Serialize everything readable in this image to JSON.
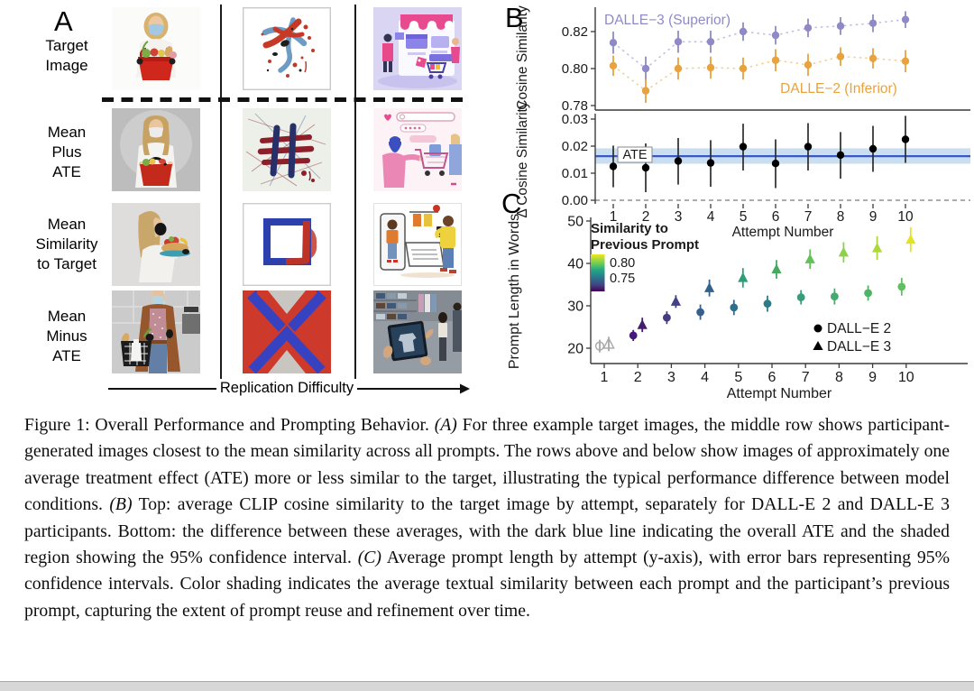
{
  "figure": {
    "panel_a": {
      "label": "A",
      "rows": [
        {
          "label": "Target\nImage"
        },
        {
          "label": "Mean\nPlus\nATE"
        },
        {
          "label": "Mean\nSimilarity\nto Target"
        },
        {
          "label": "Mean\nMinus\nATE"
        }
      ],
      "x_axis_label": "Replication Difficulty"
    },
    "panel_b": {
      "label": "B"
    },
    "panel_c": {
      "label": "C"
    },
    "caption": {
      "segments": [
        {
          "text": "Figure 1: Overall Performance and Prompting Behavior. ",
          "italic": false
        },
        {
          "text": "(A)",
          "italic": true
        },
        {
          "text": " For three example target images, the middle row shows participant-generated images closest to the mean similarity across all prompts. The rows above and below show images of approximately one average treatment effect (ATE) more or less similar to the target, illustrating the typical performance difference between model conditions. ",
          "italic": false
        },
        {
          "text": "(B)",
          "italic": true
        },
        {
          "text": " Top: average CLIP cosine similarity to the target image by attempt, separately for DALL-E 2 and DALL-E 3 participants. Bottom: the difference between these averages, with the dark blue line indicating the overall ATE and the shaded region showing the 95% confidence interval. ",
          "italic": false
        },
        {
          "text": "(C)",
          "italic": true
        },
        {
          "text": " Average prompt length by attempt (y-axis), with error bars representing 95% confidence intervals. Color shading indicates the average textual similarity between each prompt and the participant’s previous prompt, capturing the extent of prompt reuse and refinement over time.",
          "italic": false
        }
      ]
    }
  },
  "chart_data": [
    {
      "id": "b_top",
      "type": "scatter",
      "ylabel": "Cosine Similarity",
      "x": [
        1,
        2,
        3,
        4,
        5,
        6,
        7,
        8,
        9,
        10
      ],
      "yticks": [
        0.78,
        0.8,
        0.82
      ],
      "ylim": [
        0.778,
        0.832
      ],
      "grid": false,
      "series": [
        {
          "name": "DALLE−3 (Superior)",
          "color": "#8f8ac7",
          "line_color": "#c3bfe2",
          "values": [
            0.814,
            0.8,
            0.8145,
            0.8145,
            0.82,
            0.818,
            0.822,
            0.823,
            0.8245,
            0.8265
          ],
          "err": [
            0.006,
            0.0065,
            0.006,
            0.006,
            0.005,
            0.005,
            0.005,
            0.0048,
            0.0048,
            0.0045
          ],
          "annotation": {
            "x": 185,
            "y": 27
          }
        },
        {
          "name": "DALLE−2 (Inferior)",
          "color": "#e8a23e",
          "line_color": "#f2d09c",
          "values": [
            0.8015,
            0.788,
            0.8,
            0.8005,
            0.8,
            0.8045,
            0.802,
            0.8065,
            0.8055,
            0.804
          ],
          "err": [
            0.0055,
            0.0065,
            0.006,
            0.006,
            0.006,
            0.006,
            0.006,
            0.005,
            0.0055,
            0.006
          ],
          "annotation": {
            "x": 375,
            "y": 103
          }
        }
      ]
    },
    {
      "id": "b_bottom",
      "type": "scatter",
      "ylabel": "Δ Cosine Similarity",
      "xlabel": "Attempt Number",
      "x": [
        1,
        2,
        3,
        4,
        5,
        6,
        7,
        8,
        9,
        10
      ],
      "yticks": [
        0,
        0.01,
        0.02,
        0.03
      ],
      "ytick_labels": [
        "0.00",
        "0.01",
        "0.02",
        "0.03"
      ],
      "ylim": [
        -0.002,
        0.032
      ],
      "values": [
        0.0125,
        0.012,
        0.0145,
        0.0138,
        0.0198,
        0.0136,
        0.0198,
        0.0167,
        0.019,
        0.0225
      ],
      "err_low": [
        0.0048,
        0.003,
        0.0058,
        0.005,
        0.011,
        0.0045,
        0.011,
        0.008,
        0.0105,
        0.0138
      ],
      "err_high": [
        0.0202,
        0.021,
        0.023,
        0.0222,
        0.0283,
        0.0225,
        0.0285,
        0.0252,
        0.0275,
        0.0312
      ],
      "ate": 0.0163,
      "ate_band": [
        0.0135,
        0.0192
      ],
      "ate_label": "ATE",
      "ate_line_color": "#3a57c4",
      "ate_band_color": "#c9def0",
      "point_color": "#000000",
      "zero_line_dashed": true
    },
    {
      "id": "c",
      "type": "scatter",
      "ylabel": "Prompt Length in Words",
      "xlabel": "Attempt Number",
      "x": [
        1,
        2,
        3,
        4,
        5,
        6,
        7,
        8,
        9,
        10
      ],
      "yticks": [
        20,
        30,
        40,
        50
      ],
      "ylim": [
        16,
        50
      ],
      "open_marker_color": "#a8a8a8",
      "series": [
        {
          "name": "DALL−E 2",
          "marker": "circle",
          "dx": -5,
          "values": [
            20.5,
            23,
            27.2,
            28.5,
            29.6,
            30.5,
            32,
            32.2,
            33,
            34.5
          ],
          "err": [
            1.5,
            1.3,
            1.5,
            1.8,
            1.8,
            1.9,
            1.7,
            1.9,
            1.8,
            2.1
          ],
          "open_first": true,
          "colors": [
            "#a8a8a8",
            "#45197d",
            "#433c82",
            "#34608d",
            "#2e6f8e",
            "#2b7c8b",
            "#3a9c7b",
            "#45aa6e",
            "#4fb566",
            "#5ec05e"
          ]
        },
        {
          "name": "DALL−E 3",
          "marker": "triangle",
          "dx": 5,
          "values": [
            21,
            25.5,
            31,
            34.2,
            36.6,
            38.6,
            41,
            42.6,
            43.6,
            45.6
          ],
          "err": [
            1.7,
            1.7,
            1.5,
            2.0,
            2.3,
            2.2,
            2.3,
            2.4,
            2.8,
            2.9
          ],
          "open_first": true,
          "colors": [
            "#a8a8a8",
            "#421e6d",
            "#414286",
            "#33618d",
            "#2f9e77",
            "#43aa5e",
            "#63c157",
            "#8bd149",
            "#a9da36",
            "#e2e328"
          ]
        }
      ],
      "colorbar": {
        "title_lines": [
          "Similarity to",
          "Previous Prompt"
        ],
        "tick_labels": [
          "0.80",
          "0.75"
        ],
        "gradient": [
          {
            "pos": 0.0,
            "color": "#f0e51b"
          },
          {
            "pos": 0.22,
            "color": "#7ad151"
          },
          {
            "pos": 0.42,
            "color": "#22a884"
          },
          {
            "pos": 0.62,
            "color": "#2a788e"
          },
          {
            "pos": 0.82,
            "color": "#414487"
          },
          {
            "pos": 1.0,
            "color": "#440154"
          }
        ]
      },
      "legend_position": "right-bottom"
    }
  ]
}
